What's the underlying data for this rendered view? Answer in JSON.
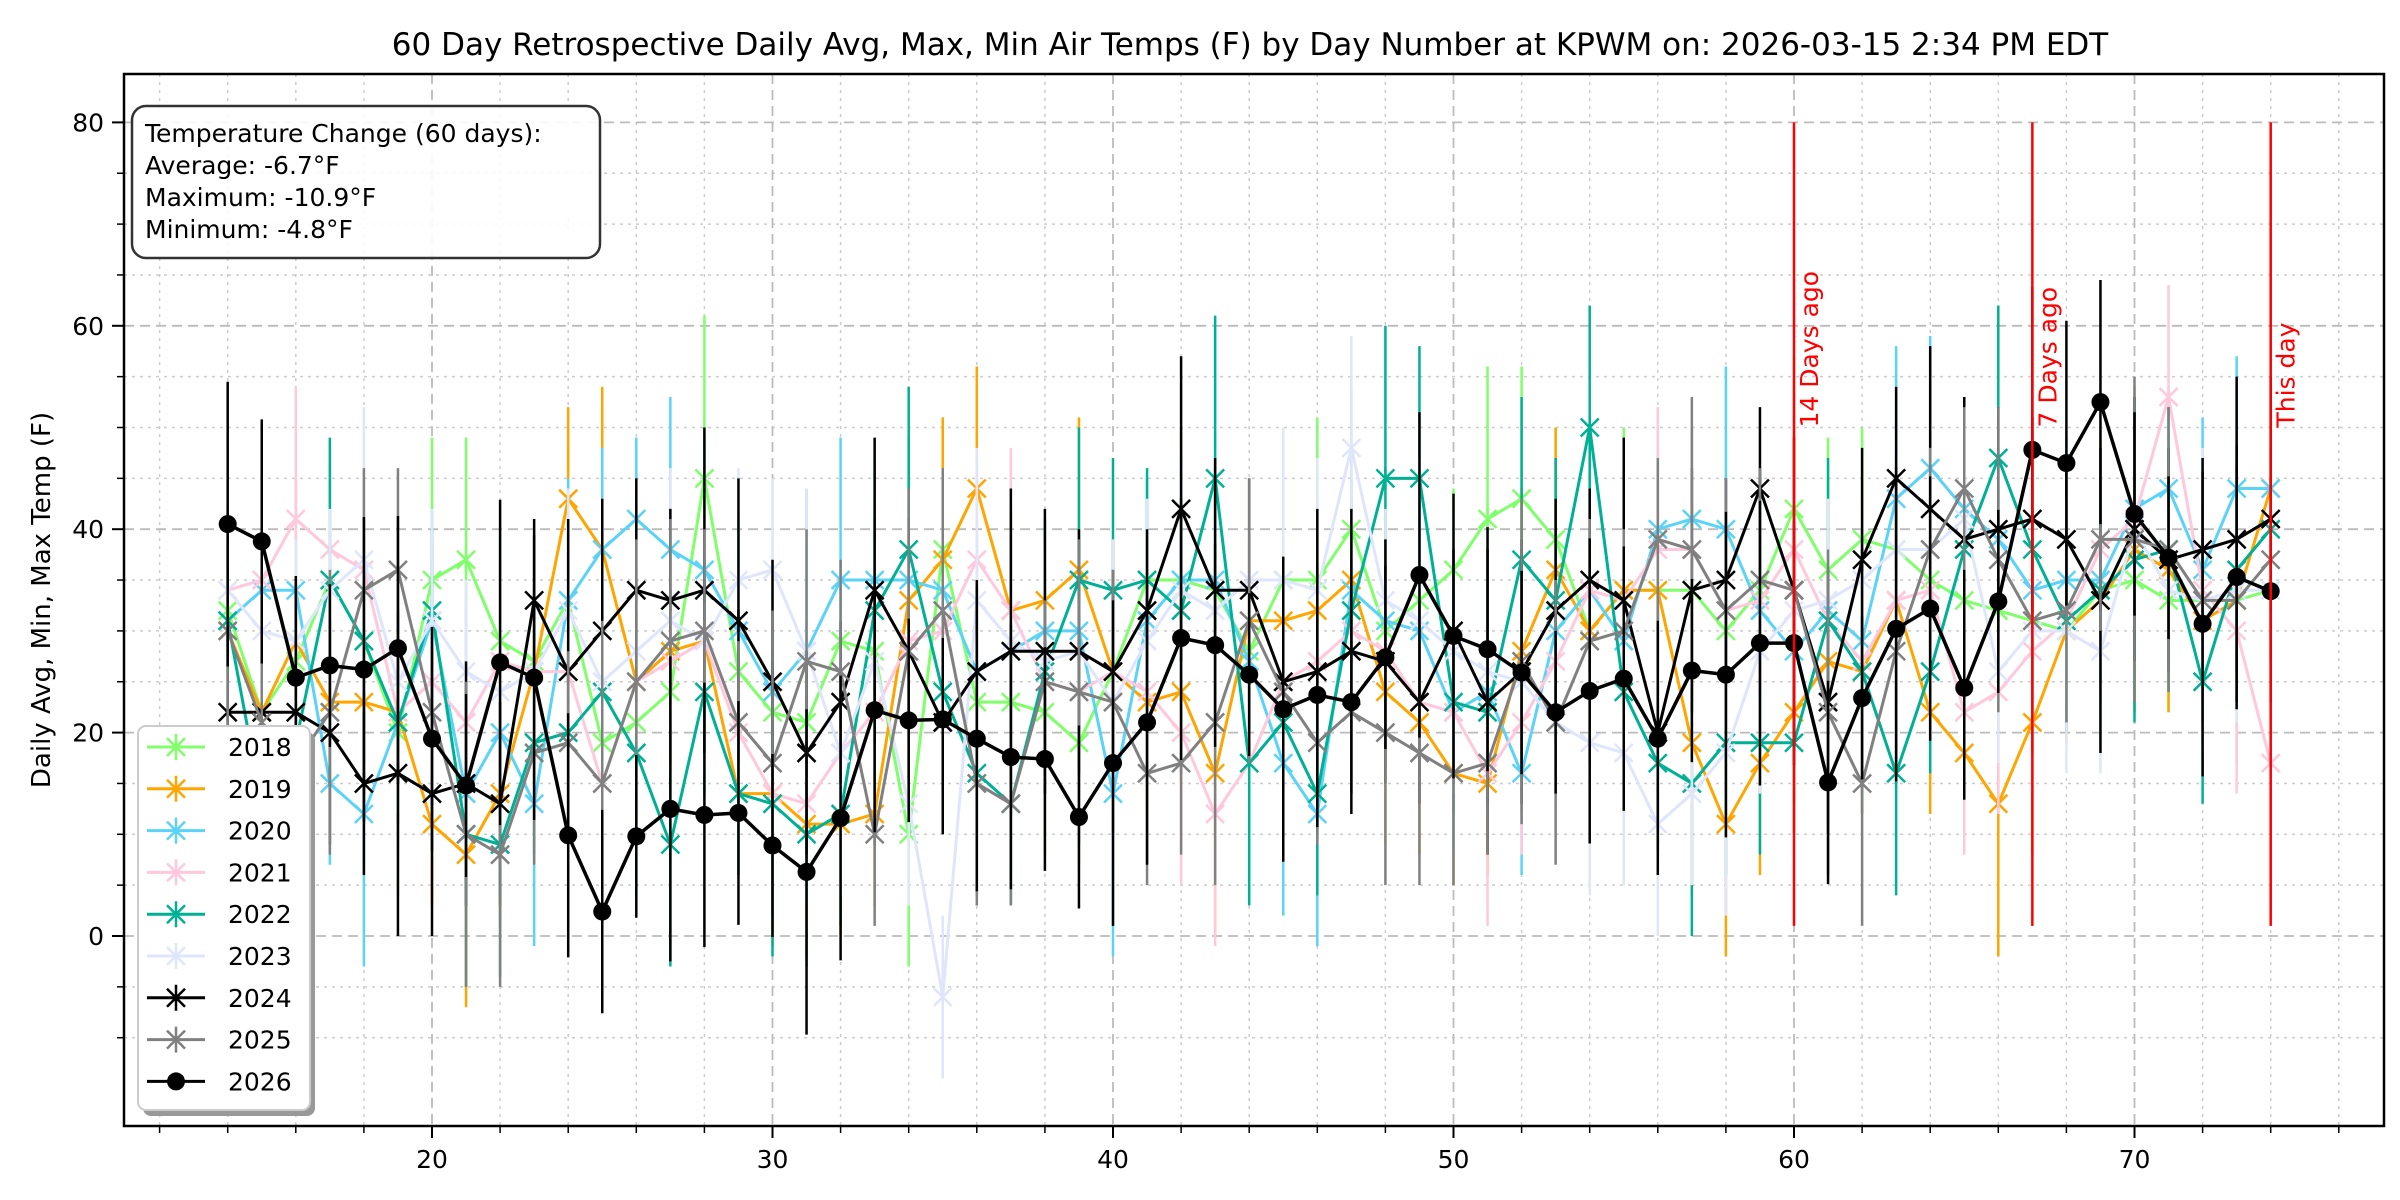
{
  "chart_data": {
    "type": "line",
    "title": "60 Day Retrospective Daily Avg, Max, Min Air Temps (F) by Day Number at KPWM on: 2026-03-15 2:34 PM EDT",
    "xlabel": "",
    "ylabel": "Daily Avg, Min, Max Temp (F)",
    "xlim": [
      11,
      77
    ],
    "ylim": [
      -15,
      85
    ],
    "xticks": [
      20,
      30,
      40,
      50,
      60,
      70
    ],
    "yticks": [
      0,
      20,
      40,
      60,
      80
    ],
    "grid": true,
    "legend_position": "lower-left",
    "annotation_box": {
      "lines": [
        "Temperature Change (60 days):",
        "Average: -6.7°F",
        "Maximum: -10.9°F",
        "Minimum: -4.8°F"
      ]
    },
    "vlines": [
      {
        "x": 60,
        "label": "14 Days ago",
        "color": "#ff0000"
      },
      {
        "x": 67,
        "label": "7 Days ago",
        "color": "#ff0000"
      },
      {
        "x": 74,
        "label": "This day",
        "color": "#ff0000"
      }
    ],
    "x": [
      14,
      15,
      16,
      17,
      18,
      19,
      20,
      21,
      22,
      23,
      24,
      25,
      26,
      27,
      28,
      29,
      30,
      31,
      32,
      33,
      34,
      35,
      36,
      37,
      38,
      39,
      40,
      41,
      42,
      43,
      44,
      45,
      46,
      47,
      48,
      49,
      50,
      51,
      52,
      53,
      54,
      55,
      56,
      57,
      58,
      59,
      60,
      61,
      62,
      63,
      64,
      65,
      66,
      67,
      68,
      69,
      70,
      71,
      72,
      73,
      74
    ],
    "series": [
      {
        "name": "2018",
        "color": "#7fff6a",
        "marker": "x",
        "values": [
          32,
          22,
          27,
          35,
          29,
          20,
          35,
          37,
          29,
          27,
          33,
          19,
          21,
          24,
          45,
          26,
          22,
          21,
          29,
          28,
          10,
          38,
          23,
          23,
          22,
          19,
          26,
          35,
          35,
          34,
          28,
          35,
          35,
          40,
          30,
          33,
          36,
          41,
          43,
          39,
          30,
          34,
          34,
          34,
          30,
          34,
          42,
          36,
          39,
          38,
          35,
          33,
          32,
          31,
          30,
          34,
          35,
          33,
          33,
          33,
          34
        ]
      },
      {
        "name": "2019",
        "color": "#ffa500",
        "marker": "x",
        "values": [
          30,
          22,
          29,
          23,
          23,
          22,
          11,
          8,
          14,
          26,
          43,
          38,
          25,
          28,
          29,
          14,
          14,
          11,
          11,
          12,
          33,
          37,
          44,
          32,
          33,
          36,
          26,
          23,
          24,
          16,
          31,
          31,
          32,
          35,
          24,
          21,
          16,
          15,
          28,
          36,
          30,
          34,
          34,
          19,
          11,
          17,
          22,
          27,
          26,
          33,
          22,
          18,
          13,
          21,
          30,
          33,
          38,
          36,
          31,
          33,
          44
        ]
      },
      {
        "name": "2020",
        "color": "#5bd3f8",
        "marker": "x",
        "values": [
          31,
          34,
          34,
          15,
          12,
          21,
          31,
          14,
          20,
          13,
          33,
          38,
          41,
          38,
          36,
          30,
          24,
          28,
          35,
          35,
          35,
          34,
          26,
          28,
          30,
          30,
          14,
          31,
          35,
          35,
          27,
          17,
          12,
          34,
          31,
          30,
          22,
          24,
          16,
          30,
          34,
          29,
          40,
          41,
          40,
          32,
          28,
          32,
          29,
          43,
          46,
          42,
          39,
          34,
          35,
          35,
          42,
          44,
          36,
          44,
          44
        ]
      },
      {
        "name": "2021",
        "color": "#ffc8dc",
        "marker": "x",
        "values": [
          34,
          35,
          41,
          38,
          36,
          22,
          25,
          21,
          27,
          26,
          26,
          15,
          25,
          27,
          29,
          20,
          14,
          13,
          18,
          22,
          29,
          30,
          37,
          32,
          25,
          24,
          26,
          24,
          20,
          12,
          17,
          25,
          27,
          30,
          28,
          23,
          22,
          16,
          21,
          27,
          34,
          33,
          38,
          38,
          32,
          33,
          38,
          31,
          27,
          33,
          34,
          22,
          24,
          28,
          31,
          38,
          41,
          53,
          34,
          30,
          17
        ]
      },
      {
        "name": "2022",
        "color": "#00b094",
        "marker": "x",
        "values": [
          31,
          13,
          19,
          35,
          29,
          21,
          32,
          10,
          9,
          19,
          20,
          24,
          18,
          9,
          24,
          14,
          13,
          10,
          12,
          32,
          38,
          24,
          16,
          13,
          26,
          35,
          34,
          35,
          32,
          45,
          17,
          21,
          14,
          32,
          45,
          45,
          23,
          22,
          37,
          33,
          50,
          24,
          17,
          15,
          19,
          19,
          19,
          31,
          26,
          16,
          26,
          38,
          47,
          38,
          31,
          34,
          37,
          38,
          25,
          36,
          40
        ]
      },
      {
        "name": "2023",
        "color": "#dfe6fc",
        "marker": "x",
        "values": [
          34,
          30,
          29,
          34,
          37,
          25,
          31,
          26,
          24,
          26,
          32,
          25,
          28,
          31,
          29,
          35,
          36,
          28,
          18,
          27,
          13,
          -6,
          33,
          29,
          27,
          28,
          23,
          29,
          34,
          32,
          35,
          35,
          34,
          48,
          33,
          31,
          28,
          26,
          25,
          21,
          19,
          18,
          11,
          14,
          18,
          28,
          32,
          33,
          35,
          38,
          38,
          41,
          26,
          30,
          30,
          28,
          40,
          34,
          33,
          34,
          34
        ]
      },
      {
        "name": "2024",
        "color": "#000000",
        "marker": "x",
        "values": [
          22,
          22,
          22,
          20,
          15,
          16,
          14,
          15,
          13,
          33,
          26,
          30,
          34,
          33,
          34,
          31,
          25,
          18,
          23,
          34,
          28,
          21,
          26,
          28,
          28,
          28,
          26,
          32,
          42,
          34,
          34,
          25,
          26,
          28,
          27,
          23,
          30,
          23,
          26,
          32,
          35,
          33,
          20,
          34,
          35,
          44,
          34,
          23,
          37,
          45,
          42,
          39,
          40,
          41,
          39,
          33,
          40,
          37,
          38,
          39,
          41
        ]
      },
      {
        "name": "2025",
        "color": "#808080",
        "marker": "x",
        "values": [
          30,
          21,
          17,
          22,
          34,
          36,
          22,
          10,
          8,
          18,
          19,
          15,
          25,
          29,
          30,
          21,
          17,
          27,
          26,
          10,
          28,
          32,
          15,
          13,
          25,
          24,
          23,
          16,
          17,
          21,
          31,
          24,
          19,
          22,
          20,
          18,
          16,
          17,
          27,
          21,
          29,
          30,
          39,
          38,
          32,
          35,
          34,
          22,
          15,
          28,
          38,
          44,
          37,
          31,
          32,
          39,
          39,
          38,
          33,
          33,
          37
        ]
      },
      {
        "name": "2026",
        "color": "#000000",
        "marker": "o",
        "values": [
          40.5,
          38.8,
          25.4,
          26.6,
          26.2,
          28.3,
          19.4,
          14.8,
          26.9,
          25.4,
          9.9,
          2.4,
          9.8,
          12.5,
          11.9,
          12.1,
          8.9,
          6.3,
          11.6,
          22.2,
          21.2,
          21.3,
          19.4,
          17.6,
          17.4,
          11.7,
          17.0,
          21.0,
          29.3,
          28.6,
          25.7,
          22.3,
          23.7,
          23.0,
          27.4,
          35.5,
          29.5,
          28.2,
          25.9,
          22.0,
          24.1,
          25.3,
          19.4,
          26.1,
          25.7,
          28.8,
          28.8,
          15.1,
          23.4,
          30.2,
          32.2,
          24.4,
          32.9,
          47.8,
          46.5,
          52.5,
          41.5,
          37.2,
          30.7,
          35.3,
          33.9
        ]
      }
    ]
  }
}
